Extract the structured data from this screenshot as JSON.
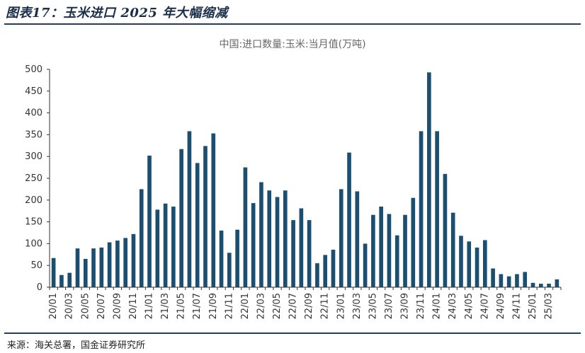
{
  "figure": {
    "title": "图表17：玉米进口 2025 年大幅缩减",
    "source": "来源：海关总署，国金证券研究所"
  },
  "colors": {
    "bar": "#1a4f72",
    "axis": "#333333",
    "rule": "#1f3f66"
  },
  "chart_data": {
    "type": "bar",
    "title": "中国:进口数量:玉米:当月值(万吨)",
    "xlabel": "",
    "ylabel": "",
    "ylim": [
      0,
      500
    ],
    "yticks": [
      0,
      50,
      100,
      150,
      200,
      250,
      300,
      350,
      400,
      450,
      500
    ],
    "grid": false,
    "legend": "none",
    "x_tick_labels": [
      "20/01",
      "20/03",
      "20/05",
      "20/07",
      "20/09",
      "20/11",
      "21/01",
      "21/03",
      "21/05",
      "21/07",
      "21/09",
      "21/11",
      "22/01",
      "22/03",
      "22/05",
      "22/07",
      "22/09",
      "22/11",
      "23/01",
      "23/03",
      "23/05",
      "23/07",
      "23/09",
      "23/11",
      "24/01",
      "24/03",
      "24/05",
      "24/07",
      "24/09",
      "24/11",
      "25/01",
      "25/03"
    ],
    "categories": [
      "20/01",
      "20/02",
      "20/03",
      "20/04",
      "20/05",
      "20/06",
      "20/07",
      "20/08",
      "20/09",
      "20/10",
      "20/11",
      "20/12",
      "21/01",
      "21/02",
      "21/03",
      "21/04",
      "21/05",
      "21/06",
      "21/07",
      "21/08",
      "21/09",
      "21/10",
      "21/11",
      "21/12",
      "22/01",
      "22/02",
      "22/03",
      "22/04",
      "22/05",
      "22/06",
      "22/07",
      "22/08",
      "22/09",
      "22/10",
      "22/11",
      "22/12",
      "23/01",
      "23/02",
      "23/03",
      "23/04",
      "23/05",
      "23/06",
      "23/07",
      "23/08",
      "23/09",
      "23/10",
      "23/11",
      "23/12",
      "24/01",
      "24/02",
      "24/03",
      "24/04",
      "24/05",
      "24/06",
      "24/07",
      "24/08",
      "24/09",
      "24/10",
      "24/11",
      "24/12",
      "25/01",
      "25/02",
      "25/03",
      "25/04"
    ],
    "values": [
      67,
      28,
      33,
      89,
      65,
      89,
      91,
      103,
      107,
      113,
      122,
      225,
      302,
      178,
      192,
      185,
      317,
      358,
      285,
      324,
      353,
      130,
      79,
      132,
      275,
      193,
      241,
      222,
      207,
      222,
      154,
      181,
      154,
      55,
      74,
      86,
      225,
      309,
      220,
      100,
      166,
      185,
      168,
      119,
      166,
      205,
      358,
      493,
      358,
      260,
      171,
      118,
      105,
      91,
      108,
      43,
      30,
      25,
      30,
      35,
      10,
      8,
      8,
      18
    ]
  }
}
